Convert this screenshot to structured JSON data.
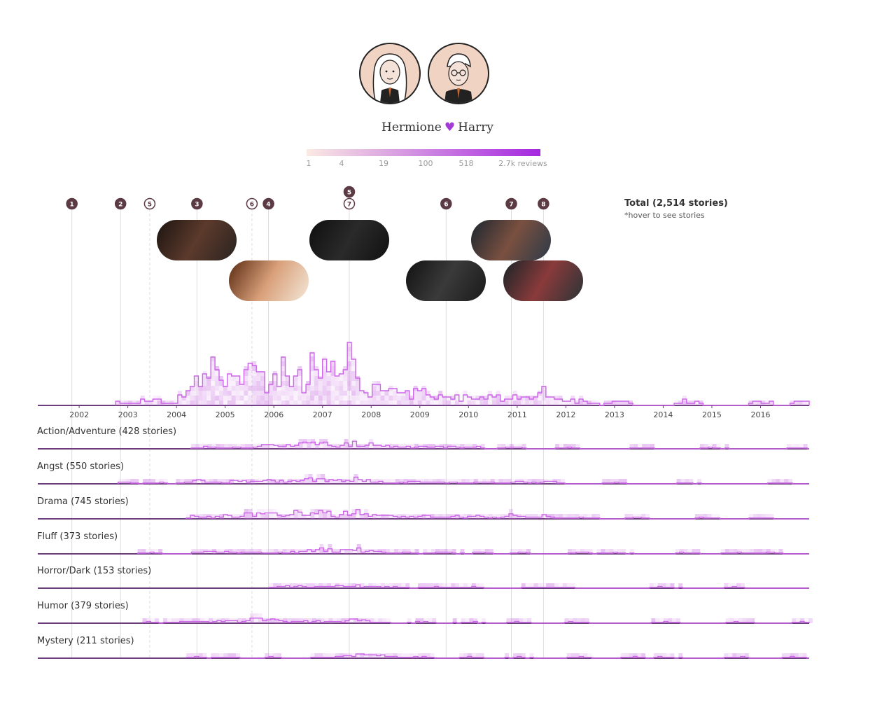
{
  "header": {
    "left_character": "Hermione",
    "right_character": "Harry",
    "heart_glyph": "♥"
  },
  "legend": {
    "ticks": [
      "1",
      "4",
      "19",
      "100",
      "518",
      "2.7k reviews"
    ],
    "color_from": "#fbeae3",
    "color_to": "#a427e0"
  },
  "total": {
    "label": "Total (2,514 stories)",
    "hint": "*hover to see stories"
  },
  "markers": [
    {
      "label": "1",
      "year": 2001.85,
      "style": "solid"
    },
    {
      "label": "2",
      "year": 2002.85,
      "style": "solid"
    },
    {
      "label": "5",
      "year": 2003.45,
      "style": "dashed"
    },
    {
      "label": "3",
      "year": 2004.42,
      "style": "solid"
    },
    {
      "label": "6",
      "year": 2005.55,
      "style": "dashed"
    },
    {
      "label": "4",
      "year": 2005.89,
      "style": "solid"
    },
    {
      "label": "5",
      "year": 2007.55,
      "style": "solid",
      "raised": true
    },
    {
      "label": "7",
      "year": 2007.55,
      "style": "dashed"
    },
    {
      "label": "6",
      "year": 2009.54,
      "style": "solid"
    },
    {
      "label": "7",
      "year": 2010.88,
      "style": "solid"
    },
    {
      "label": "8",
      "year": 2011.54,
      "style": "solid"
    }
  ],
  "chart_data": {
    "type": "area",
    "x_axis": {
      "ticks": [
        "2002",
        "2003",
        "2004",
        "2005",
        "2006",
        "2007",
        "2008",
        "2009",
        "2010",
        "2011",
        "2012",
        "2013",
        "2014",
        "2015",
        "2016"
      ],
      "range": [
        2001.15,
        2017.0
      ]
    },
    "series": [
      {
        "name": "Total (2,514 stories)",
        "peaks": [
          [
            2002.7,
            3
          ],
          [
            2003.4,
            5
          ],
          [
            2004.3,
            10
          ],
          [
            2004.55,
            22
          ],
          [
            2004.9,
            9
          ],
          [
            2005.2,
            14
          ],
          [
            2005.55,
            23
          ],
          [
            2006.0,
            11
          ],
          [
            2006.3,
            20
          ],
          [
            2006.8,
            15
          ],
          [
            2007.0,
            22
          ],
          [
            2007.55,
            30
          ],
          [
            2008.1,
            10
          ],
          [
            2008.5,
            8
          ],
          [
            2009.0,
            9
          ],
          [
            2009.5,
            7
          ],
          [
            2010.0,
            5
          ],
          [
            2010.5,
            6
          ],
          [
            2011.0,
            5
          ],
          [
            2011.6,
            10
          ],
          [
            2012.2,
            4
          ],
          [
            2013.0,
            3
          ],
          [
            2014.5,
            3
          ],
          [
            2016.0,
            3
          ],
          [
            2016.9,
            4
          ]
        ]
      },
      {
        "name": "Action/Adventure (428 stories)",
        "peaks": [
          [
            2004.45,
            3
          ],
          [
            2005.0,
            4
          ],
          [
            2005.8,
            5
          ],
          [
            2006.3,
            6
          ],
          [
            2006.7,
            8
          ],
          [
            2007.0,
            6
          ],
          [
            2007.55,
            8
          ],
          [
            2008.0,
            7
          ],
          [
            2008.5,
            4
          ],
          [
            2009.0,
            4
          ],
          [
            2009.5,
            3
          ],
          [
            2010.0,
            4
          ],
          [
            2010.9,
            3
          ],
          [
            2012.0,
            2
          ],
          [
            2013.5,
            2
          ],
          [
            2015.0,
            2
          ],
          [
            2016.8,
            2
          ]
        ]
      },
      {
        "name": "Angst (550 stories)",
        "peaks": [
          [
            2002.9,
            2
          ],
          [
            2003.6,
            2
          ],
          [
            2004.4,
            5
          ],
          [
            2005.0,
            4
          ],
          [
            2005.5,
            7
          ],
          [
            2006.0,
            5
          ],
          [
            2006.6,
            7
          ],
          [
            2007.0,
            6
          ],
          [
            2007.55,
            9
          ],
          [
            2008.0,
            4
          ],
          [
            2008.8,
            4
          ],
          [
            2009.5,
            4
          ],
          [
            2010.3,
            3
          ],
          [
            2011.0,
            3
          ],
          [
            2011.6,
            4
          ],
          [
            2013.0,
            2
          ],
          [
            2014.4,
            2
          ],
          [
            2016.4,
            2
          ]
        ]
      },
      {
        "name": "Drama (745 stories)",
        "peaks": [
          [
            2004.4,
            5
          ],
          [
            2005.0,
            5
          ],
          [
            2005.5,
            8
          ],
          [
            2006.0,
            7
          ],
          [
            2006.4,
            9
          ],
          [
            2006.9,
            6
          ],
          [
            2007.0,
            7
          ],
          [
            2007.55,
            11
          ],
          [
            2008.0,
            8
          ],
          [
            2008.4,
            5
          ],
          [
            2009.0,
            5
          ],
          [
            2009.6,
            6
          ],
          [
            2010.2,
            4
          ],
          [
            2010.9,
            6
          ],
          [
            2011.5,
            5
          ],
          [
            2012.3,
            3
          ],
          [
            2013.4,
            2
          ],
          [
            2014.8,
            2
          ],
          [
            2016.0,
            2
          ]
        ]
      },
      {
        "name": "Fluff (373 stories)",
        "peaks": [
          [
            2003.4,
            2
          ],
          [
            2004.5,
            3
          ],
          [
            2005.0,
            3
          ],
          [
            2005.6,
            3
          ],
          [
            2006.3,
            3
          ],
          [
            2006.8,
            4
          ],
          [
            2007.0,
            5
          ],
          [
            2007.55,
            9
          ],
          [
            2008.0,
            4
          ],
          [
            2008.6,
            3
          ],
          [
            2009.4,
            3
          ],
          [
            2010.2,
            2
          ],
          [
            2011.0,
            2
          ],
          [
            2012.3,
            2
          ],
          [
            2013.0,
            2
          ],
          [
            2014.4,
            2
          ],
          [
            2015.5,
            2
          ],
          [
            2016.2,
            2
          ]
        ]
      },
      {
        "name": "Horror/Dark (153 stories)",
        "peaks": [
          [
            2006.0,
            2
          ],
          [
            2006.4,
            4
          ],
          [
            2007.0,
            3
          ],
          [
            2007.55,
            5
          ],
          [
            2008.0,
            3
          ],
          [
            2008.5,
            2
          ],
          [
            2009.3,
            2
          ],
          [
            2010.0,
            2
          ],
          [
            2011.3,
            2
          ],
          [
            2011.8,
            2
          ],
          [
            2014.0,
            2
          ],
          [
            2015.4,
            2
          ]
        ]
      },
      {
        "name": "Humor (379 stories)",
        "peaks": [
          [
            2003.3,
            2
          ],
          [
            2004.0,
            2
          ],
          [
            2004.5,
            3
          ],
          [
            2005.0,
            4
          ],
          [
            2005.6,
            6
          ],
          [
            2006.0,
            4
          ],
          [
            2006.5,
            3
          ],
          [
            2007.0,
            3
          ],
          [
            2007.55,
            5
          ],
          [
            2008.0,
            3
          ],
          [
            2009.0,
            2
          ],
          [
            2010.0,
            2
          ],
          [
            2011.0,
            2
          ],
          [
            2012.2,
            2
          ],
          [
            2014.0,
            2
          ],
          [
            2015.5,
            2
          ],
          [
            2016.8,
            2
          ]
        ]
      },
      {
        "name": "Mystery (211 stories)",
        "peaks": [
          [
            2004.3,
            2
          ],
          [
            2005.0,
            2
          ],
          [
            2006.0,
            2
          ],
          [
            2007.0,
            2
          ],
          [
            2007.55,
            4
          ],
          [
            2007.9,
            4
          ],
          [
            2008.3,
            3
          ],
          [
            2009.0,
            2
          ],
          [
            2010.0,
            2
          ],
          [
            2011.0,
            2
          ],
          [
            2012.3,
            2
          ],
          [
            2013.3,
            2
          ],
          [
            2014.0,
            2
          ],
          [
            2015.5,
            2
          ],
          [
            2016.7,
            2
          ]
        ]
      }
    ]
  },
  "stills": [
    {
      "name": "still-1",
      "year": 2004.42,
      "row": 0,
      "colors": [
        "#1b1410",
        "#5c3a2c",
        "#2a2320"
      ]
    },
    {
      "name": "still-2",
      "year": 2005.89,
      "row": 1,
      "colors": [
        "#5a2a12",
        "#d9a07a",
        "#f3e7d8"
      ]
    },
    {
      "name": "still-3",
      "year": 2007.55,
      "row": 0,
      "colors": [
        "#0f0f0f",
        "#2a2a2a",
        "#111111"
      ]
    },
    {
      "name": "still-4",
      "year": 2009.54,
      "row": 1,
      "colors": [
        "#121212",
        "#3a3a3a",
        "#1a1a1a"
      ]
    },
    {
      "name": "still-5",
      "year": 2010.88,
      "row": 0,
      "colors": [
        "#1c2630",
        "#7a5040",
        "#2c3a48"
      ]
    },
    {
      "name": "still-6",
      "year": 2011.54,
      "row": 1,
      "colors": [
        "#1a2428",
        "#8a3a3a",
        "#2a3438"
      ]
    }
  ]
}
